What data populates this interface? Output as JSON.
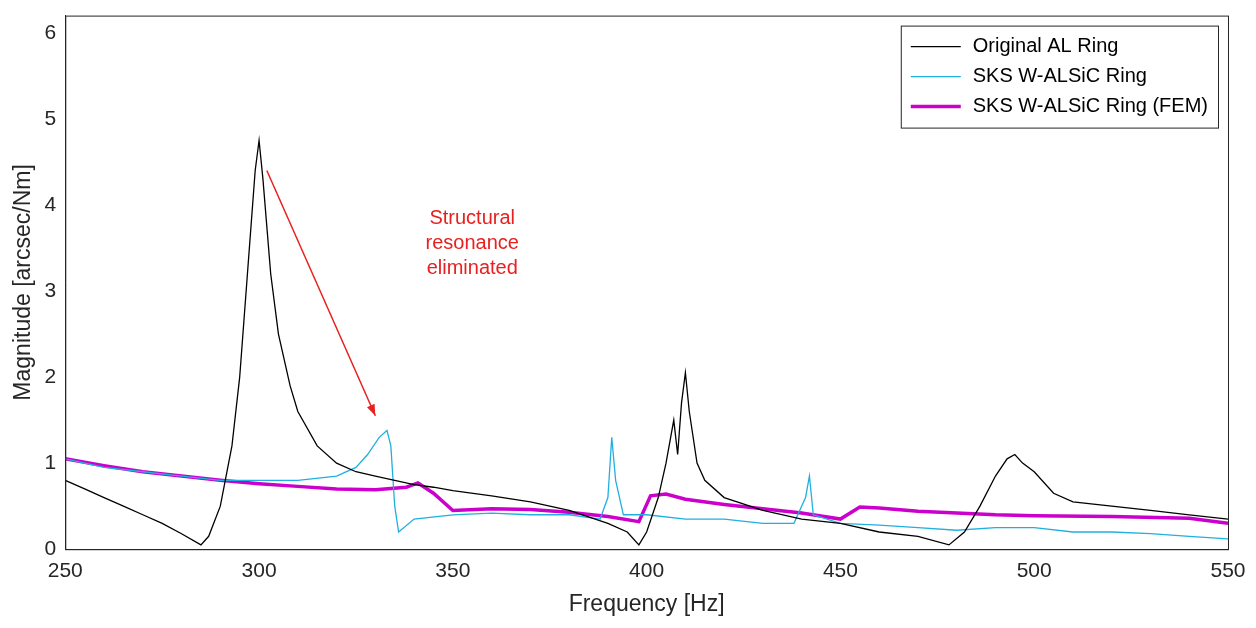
{
  "chart_data": {
    "type": "line",
    "x_label": "Frequency [Hz]",
    "y_label": "Magnitude [arcsec/Nm]",
    "xlim": [
      250,
      550
    ],
    "xticks": [
      250,
      300,
      350,
      400,
      450,
      500,
      550
    ],
    "ylim": [
      0,
      6.2
    ],
    "yticks": [
      0,
      1,
      2,
      3,
      4,
      5,
      6
    ],
    "grid": false,
    "legend": "upper right",
    "annotation": {
      "text": "Structural resonance eliminated",
      "x": 355,
      "y": 3.55,
      "arrow_from": [
        302,
        4.4
      ],
      "arrow_to": [
        330,
        1.55
      ],
      "color": "#e8201e"
    },
    "series": [
      {
        "name": "Original AL Ring",
        "color": "#000000",
        "line_style": "solid",
        "x": [
          250,
          255,
          260,
          265,
          270,
          275,
          280,
          285,
          287,
          290,
          293,
          295,
          297,
          299,
          300,
          301,
          303,
          305,
          308,
          310,
          315,
          320,
          325,
          330,
          335,
          340,
          345,
          350,
          360,
          370,
          380,
          390,
          395,
          398,
          400,
          403,
          405,
          407,
          408,
          409,
          410,
          411,
          413,
          415,
          420,
          430,
          440,
          450,
          460,
          470,
          478,
          482,
          486,
          490,
          493,
          495,
          497,
          500,
          505,
          510,
          520,
          530,
          540,
          550
        ],
        "values": [
          0.8,
          0.7,
          0.6,
          0.5,
          0.4,
          0.3,
          0.18,
          0.05,
          0.15,
          0.5,
          1.2,
          2.0,
          3.2,
          4.4,
          4.75,
          4.3,
          3.2,
          2.5,
          1.9,
          1.6,
          1.2,
          1.0,
          0.9,
          0.85,
          0.8,
          0.75,
          0.72,
          0.68,
          0.62,
          0.55,
          0.45,
          0.3,
          0.2,
          0.05,
          0.2,
          0.6,
          1.0,
          1.5,
          1.1,
          1.7,
          2.05,
          1.6,
          1.0,
          0.8,
          0.6,
          0.45,
          0.35,
          0.3,
          0.2,
          0.15,
          0.05,
          0.2,
          0.5,
          0.85,
          1.05,
          1.1,
          1.0,
          0.9,
          0.65,
          0.55,
          0.5,
          0.45,
          0.4,
          0.35
        ]
      },
      {
        "name": "SKS W-ALSiC Ring",
        "color": "#1fb0e0",
        "line_style": "solid",
        "x": [
          250,
          260,
          270,
          280,
          290,
          300,
          310,
          320,
          325,
          328,
          331,
          333,
          334,
          335,
          336,
          340,
          350,
          360,
          370,
          380,
          388,
          390,
          391,
          392,
          394,
          400,
          410,
          420,
          430,
          438,
          441,
          442,
          443,
          450,
          460,
          470,
          480,
          490,
          500,
          510,
          520,
          530,
          540,
          550
        ],
        "values": [
          1.05,
          0.95,
          0.9,
          0.85,
          0.8,
          0.8,
          0.8,
          0.85,
          0.95,
          1.1,
          1.3,
          1.38,
          1.2,
          0.5,
          0.2,
          0.35,
          0.4,
          0.42,
          0.4,
          0.4,
          0.35,
          0.6,
          1.3,
          0.8,
          0.4,
          0.4,
          0.35,
          0.35,
          0.3,
          0.3,
          0.6,
          0.85,
          0.4,
          0.3,
          0.28,
          0.25,
          0.22,
          0.25,
          0.25,
          0.2,
          0.2,
          0.18,
          0.15,
          0.12
        ]
      },
      {
        "name": "SKS W-ALSiC Ring (FEM)",
        "color": "#cc00cc",
        "line_style": "solid",
        "x": [
          250,
          260,
          270,
          280,
          290,
          300,
          310,
          320,
          330,
          338,
          341,
          345,
          350,
          360,
          370,
          380,
          390,
          398,
          401,
          405,
          410,
          420,
          430,
          440,
          450,
          455,
          460,
          470,
          480,
          490,
          500,
          520,
          540,
          550
        ],
        "values": [
          1.05,
          0.97,
          0.9,
          0.85,
          0.8,
          0.76,
          0.73,
          0.7,
          0.69,
          0.72,
          0.77,
          0.65,
          0.45,
          0.47,
          0.46,
          0.43,
          0.38,
          0.32,
          0.62,
          0.64,
          0.58,
          0.52,
          0.47,
          0.42,
          0.35,
          0.49,
          0.48,
          0.44,
          0.42,
          0.4,
          0.39,
          0.38,
          0.36,
          0.3
        ]
      }
    ]
  }
}
